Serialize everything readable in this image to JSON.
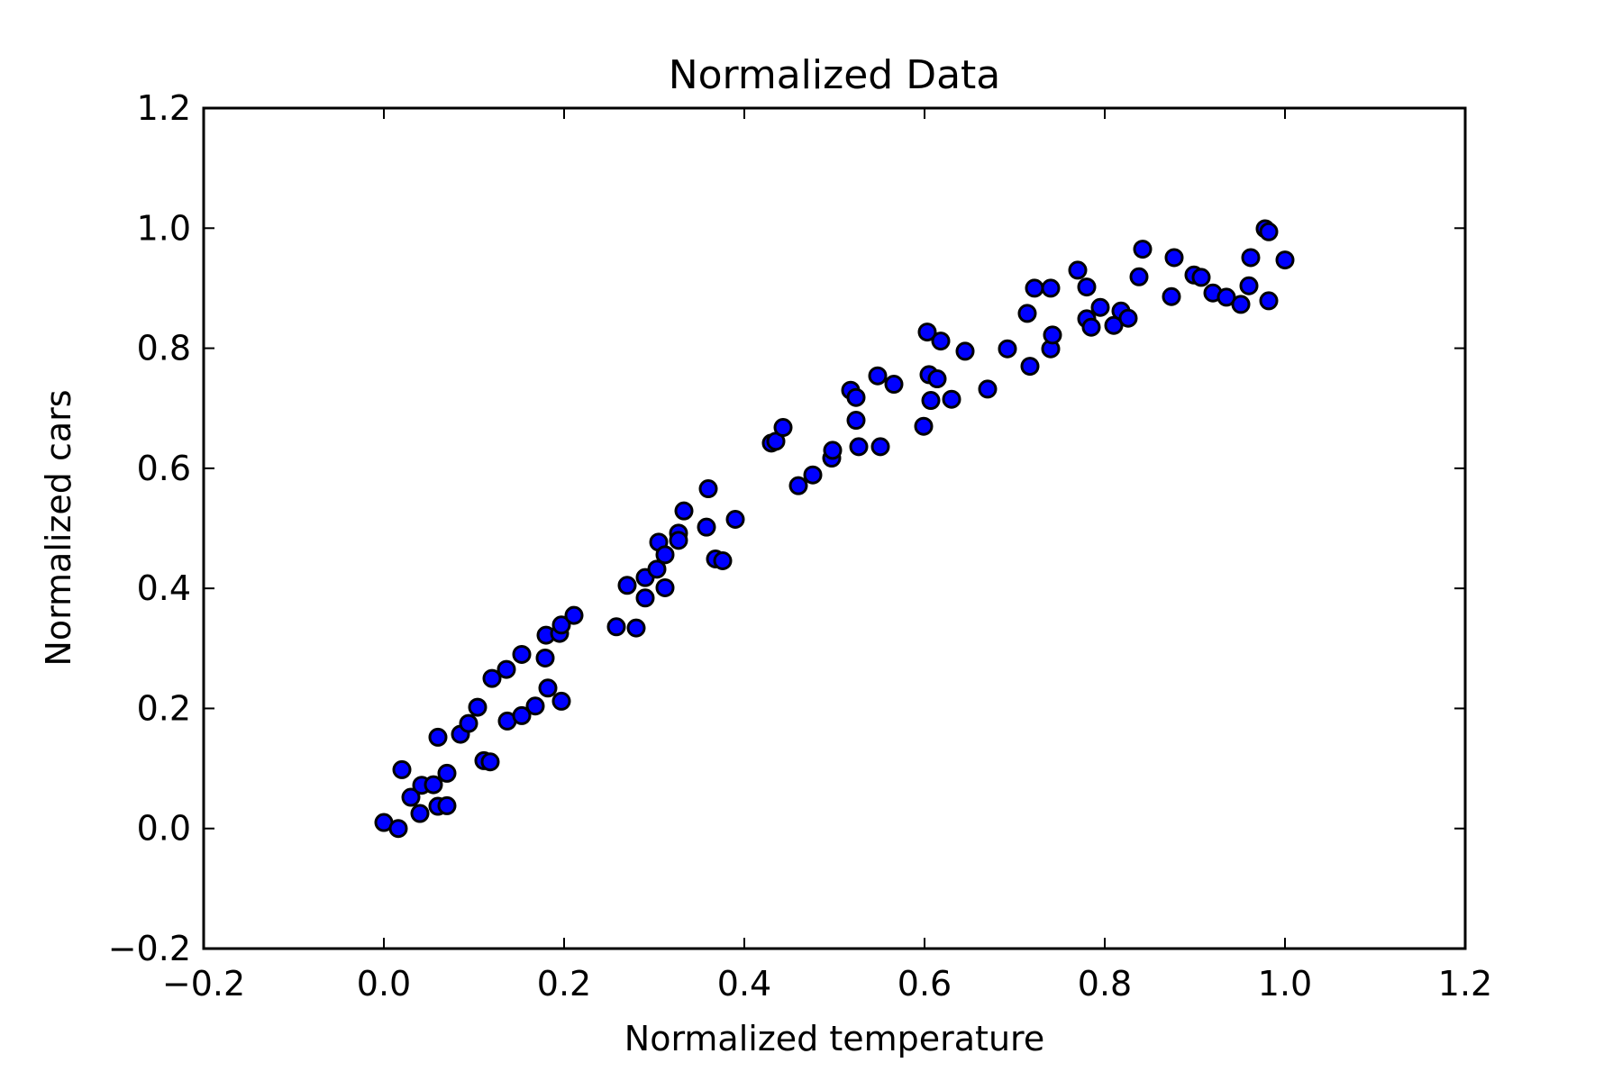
{
  "chart_data": {
    "type": "scatter",
    "title": "Normalized Data",
    "xlabel": "Normalized temperature",
    "ylabel": "Normalized cars",
    "xlim": [
      -0.2,
      1.2
    ],
    "ylim": [
      -0.2,
      1.2
    ],
    "xticks": [
      -0.2,
      0.0,
      0.2,
      0.4,
      0.6,
      0.8,
      1.0,
      1.2
    ],
    "yticks": [
      -0.2,
      0.0,
      0.2,
      0.4,
      0.6,
      0.8,
      1.0,
      1.2
    ],
    "xtick_labels": [
      "−0.2",
      "0.0",
      "0.2",
      "0.4",
      "0.6",
      "0.8",
      "1.0",
      "1.2"
    ],
    "ytick_labels": [
      "−0.2",
      "0.0",
      "0.2",
      "0.4",
      "0.6",
      "0.8",
      "1.0",
      "1.2"
    ],
    "grid": false,
    "marker_color": "#0000ff",
    "marker_edge_color": "#000000",
    "points": [
      [
        0.0,
        0.01
      ],
      [
        0.016,
        0.0
      ],
      [
        0.02,
        0.098
      ],
      [
        0.03,
        0.052
      ],
      [
        0.04,
        0.025
      ],
      [
        0.042,
        0.072
      ],
      [
        0.055,
        0.073
      ],
      [
        0.06,
        0.152
      ],
      [
        0.06,
        0.037
      ],
      [
        0.07,
        0.038
      ],
      [
        0.07,
        0.092
      ],
      [
        0.085,
        0.157
      ],
      [
        0.094,
        0.175
      ],
      [
        0.104,
        0.202
      ],
      [
        0.111,
        0.113
      ],
      [
        0.118,
        0.111
      ],
      [
        0.12,
        0.25
      ],
      [
        0.136,
        0.265
      ],
      [
        0.137,
        0.179
      ],
      [
        0.153,
        0.29
      ],
      [
        0.153,
        0.188
      ],
      [
        0.168,
        0.204
      ],
      [
        0.179,
        0.284
      ],
      [
        0.18,
        0.322
      ],
      [
        0.182,
        0.234
      ],
      [
        0.195,
        0.325
      ],
      [
        0.197,
        0.339
      ],
      [
        0.197,
        0.212
      ],
      [
        0.211,
        0.355
      ],
      [
        0.258,
        0.336
      ],
      [
        0.27,
        0.405
      ],
      [
        0.28,
        0.334
      ],
      [
        0.29,
        0.384
      ],
      [
        0.29,
        0.418
      ],
      [
        0.303,
        0.432
      ],
      [
        0.305,
        0.477
      ],
      [
        0.312,
        0.456
      ],
      [
        0.312,
        0.401
      ],
      [
        0.327,
        0.492
      ],
      [
        0.327,
        0.48
      ],
      [
        0.333,
        0.529
      ],
      [
        0.358,
        0.502
      ],
      [
        0.36,
        0.566
      ],
      [
        0.368,
        0.449
      ],
      [
        0.376,
        0.446
      ],
      [
        0.39,
        0.515
      ],
      [
        0.43,
        0.642
      ],
      [
        0.435,
        0.645
      ],
      [
        0.443,
        0.668
      ],
      [
        0.46,
        0.571
      ],
      [
        0.476,
        0.589
      ],
      [
        0.497,
        0.617
      ],
      [
        0.498,
        0.63
      ],
      [
        0.518,
        0.73
      ],
      [
        0.524,
        0.718
      ],
      [
        0.524,
        0.68
      ],
      [
        0.527,
        0.636
      ],
      [
        0.548,
        0.754
      ],
      [
        0.551,
        0.636
      ],
      [
        0.566,
        0.74
      ],
      [
        0.599,
        0.67
      ],
      [
        0.603,
        0.827
      ],
      [
        0.605,
        0.756
      ],
      [
        0.607,
        0.713
      ],
      [
        0.614,
        0.749
      ],
      [
        0.618,
        0.812
      ],
      [
        0.63,
        0.715
      ],
      [
        0.645,
        0.795
      ],
      [
        0.67,
        0.732
      ],
      [
        0.692,
        0.799
      ],
      [
        0.714,
        0.858
      ],
      [
        0.717,
        0.77
      ],
      [
        0.722,
        0.9
      ],
      [
        0.74,
        0.9
      ],
      [
        0.74,
        0.799
      ],
      [
        0.742,
        0.822
      ],
      [
        0.77,
        0.93
      ],
      [
        0.78,
        0.902
      ],
      [
        0.78,
        0.849
      ],
      [
        0.785,
        0.835
      ],
      [
        0.795,
        0.868
      ],
      [
        0.81,
        0.838
      ],
      [
        0.818,
        0.862
      ],
      [
        0.826,
        0.85
      ],
      [
        0.838,
        0.919
      ],
      [
        0.842,
        0.965
      ],
      [
        0.874,
        0.886
      ],
      [
        0.877,
        0.951
      ],
      [
        0.899,
        0.922
      ],
      [
        0.907,
        0.918
      ],
      [
        0.92,
        0.892
      ],
      [
        0.935,
        0.885
      ],
      [
        0.951,
        0.873
      ],
      [
        0.96,
        0.904
      ],
      [
        0.962,
        0.951
      ],
      [
        0.978,
        0.999
      ],
      [
        0.982,
        0.994
      ],
      [
        0.982,
        0.879
      ],
      [
        1.0,
        0.947
      ]
    ]
  }
}
